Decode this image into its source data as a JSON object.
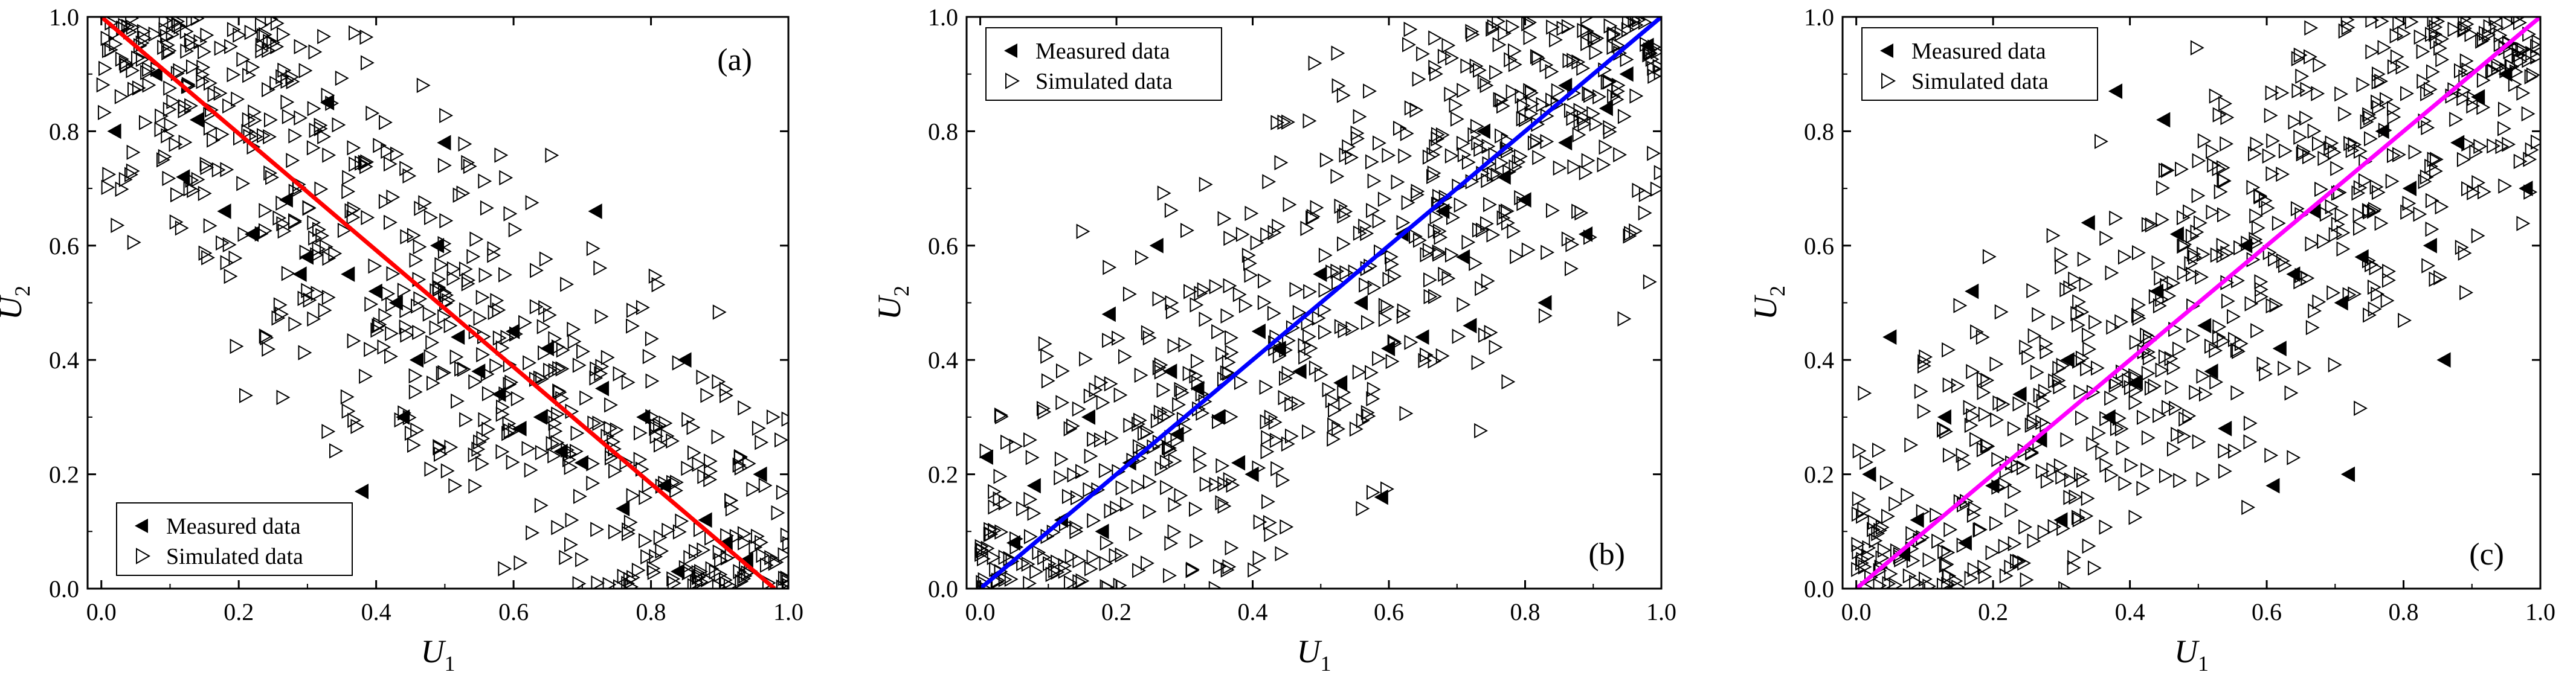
{
  "chart_data": [
    {
      "type": "scatter",
      "panel_label": "(a)",
      "xlabel": "U",
      "xlabel_sub": "1",
      "ylabel": "U",
      "ylabel_sub": "2",
      "xlim": [
        -0.02,
        1.0
      ],
      "ylim": [
        0.0,
        1.0
      ],
      "xticks": [
        "0.0",
        "0.2",
        "0.4",
        "0.6",
        "0.8",
        "1.0"
      ],
      "yticks": [
        "0.0",
        "0.2",
        "0.4",
        "0.6",
        "0.8",
        "1.0"
      ],
      "grid": false,
      "legend": {
        "position": "bottom-left",
        "measured_label": "Measured data",
        "simulated_label": "Simulated data"
      },
      "fit_line": {
        "x": [
          0.0,
          0.98
        ],
        "y": [
          1.0,
          0.0
        ],
        "color": "#ff0000"
      },
      "trend": "negative",
      "series": [
        {
          "name": "Measured data",
          "marker": "filled-left-triangle",
          "x": [
            0.02,
            0.08,
            0.14,
            0.18,
            0.22,
            0.27,
            0.3,
            0.33,
            0.36,
            0.4,
            0.43,
            0.46,
            0.49,
            0.52,
            0.55,
            0.58,
            0.61,
            0.64,
            0.67,
            0.7,
            0.73,
            0.76,
            0.79,
            0.82,
            0.85,
            0.88,
            0.91,
            0.94,
            0.6,
            0.5,
            0.38,
            0.72,
            0.84,
            0.96,
            0.44,
            0.29,
            0.12,
            0.65
          ],
          "y": [
            0.8,
            0.9,
            0.82,
            0.66,
            0.62,
            0.68,
            0.58,
            0.85,
            0.55,
            0.52,
            0.5,
            0.4,
            0.6,
            0.44,
            0.38,
            0.34,
            0.28,
            0.3,
            0.24,
            0.22,
            0.35,
            0.14,
            0.3,
            0.18,
            0.4,
            0.12,
            0.08,
            0.05,
            0.45,
            0.78,
            0.17,
            0.66,
            0.03,
            0.2,
            0.3,
            0.55,
            0.72,
            0.42
          ]
        },
        {
          "name": "Simulated data",
          "marker": "open-right-triangle",
          "count": 620,
          "slope": -1.0,
          "intercept": 1.0,
          "spread": 0.17
        }
      ]
    },
    {
      "type": "scatter",
      "panel_label": "(b)",
      "xlabel": "U",
      "xlabel_sub": "1",
      "ylabel": "U",
      "ylabel_sub": "2",
      "xlim": [
        -0.02,
        1.0
      ],
      "ylim": [
        0.0,
        1.0
      ],
      "xticks": [
        "0.0",
        "0.2",
        "0.4",
        "0.6",
        "0.8",
        "1.0"
      ],
      "yticks": [
        "0.0",
        "0.2",
        "0.4",
        "0.6",
        "0.8",
        "1.0"
      ],
      "grid": false,
      "legend": {
        "position": "top-left",
        "measured_label": "Measured data",
        "simulated_label": "Simulated data"
      },
      "fit_line": {
        "x": [
          0.0,
          1.0
        ],
        "y": [
          0.0,
          1.0
        ],
        "color": "#0000ff"
      },
      "trend": "positive",
      "series": [
        {
          "name": "Measured data",
          "marker": "filled-left-triangle",
          "x": [
            0.01,
            0.05,
            0.08,
            0.12,
            0.16,
            0.19,
            0.22,
            0.26,
            0.29,
            0.32,
            0.35,
            0.38,
            0.41,
            0.44,
            0.47,
            0.5,
            0.53,
            0.56,
            0.59,
            0.62,
            0.65,
            0.68,
            0.71,
            0.74,
            0.77,
            0.8,
            0.83,
            0.86,
            0.89,
            0.92,
            0.95,
            0.98,
            0.6,
            0.28,
            0.4,
            0.72,
            0.18,
            0.86
          ],
          "y": [
            0.23,
            0.08,
            0.18,
            0.12,
            0.3,
            0.48,
            0.22,
            0.6,
            0.27,
            0.35,
            0.3,
            0.22,
            0.45,
            0.42,
            0.38,
            0.55,
            0.36,
            0.5,
            0.16,
            0.62,
            0.44,
            0.66,
            0.58,
            0.8,
            0.72,
            0.68,
            0.5,
            0.78,
            0.62,
            0.84,
            0.9,
            0.95,
            0.42,
            0.38,
            0.2,
            0.46,
            0.1,
            0.88
          ]
        },
        {
          "name": "Simulated data",
          "marker": "open-right-triangle",
          "count": 620,
          "slope": 1.0,
          "intercept": 0.0,
          "spread": 0.17
        }
      ]
    },
    {
      "type": "scatter",
      "panel_label": "(c)",
      "xlabel": "U",
      "xlabel_sub": "1",
      "ylabel": "U",
      "ylabel_sub": "2",
      "xlim": [
        -0.02,
        1.0
      ],
      "ylim": [
        0.0,
        1.0
      ],
      "xticks": [
        "0.0",
        "0.2",
        "0.4",
        "0.6",
        "0.8",
        "1.0"
      ],
      "yticks": [
        "0.0",
        "0.2",
        "0.4",
        "0.6",
        "0.8",
        "1.0"
      ],
      "grid": false,
      "legend": {
        "position": "top-left",
        "measured_label": "Measured data",
        "simulated_label": "Simulated data"
      },
      "fit_line": {
        "x": [
          0.0,
          1.0
        ],
        "y": [
          0.0,
          1.0
        ],
        "color": "#ff00ff"
      },
      "trend": "positive",
      "series": [
        {
          "name": "Measured data",
          "marker": "filled-left-triangle",
          "x": [
            0.02,
            0.05,
            0.09,
            0.13,
            0.17,
            0.2,
            0.24,
            0.27,
            0.31,
            0.34,
            0.37,
            0.41,
            0.44,
            0.47,
            0.51,
            0.54,
            0.57,
            0.61,
            0.64,
            0.67,
            0.71,
            0.74,
            0.77,
            0.81,
            0.84,
            0.88,
            0.91,
            0.95,
            0.98,
            0.38,
            0.62,
            0.16,
            0.72,
            0.3,
            0.86,
            0.52,
            0.45,
            0.07
          ],
          "y": [
            0.2,
            0.44,
            0.12,
            0.3,
            0.52,
            0.18,
            0.34,
            0.26,
            0.4,
            0.64,
            0.3,
            0.36,
            0.52,
            0.62,
            0.46,
            0.28,
            0.6,
            0.18,
            0.55,
            0.66,
            0.5,
            0.58,
            0.8,
            0.7,
            0.6,
            0.78,
            0.86,
            0.9,
            0.7,
            0.87,
            0.42,
            0.08,
            0.2,
            0.12,
            0.4,
            0.38,
            0.82,
            0.06
          ]
        },
        {
          "name": "Simulated data",
          "marker": "open-right-triangle",
          "count": 620,
          "slope": 1.0,
          "intercept": 0.0,
          "spread": 0.17
        }
      ]
    }
  ]
}
